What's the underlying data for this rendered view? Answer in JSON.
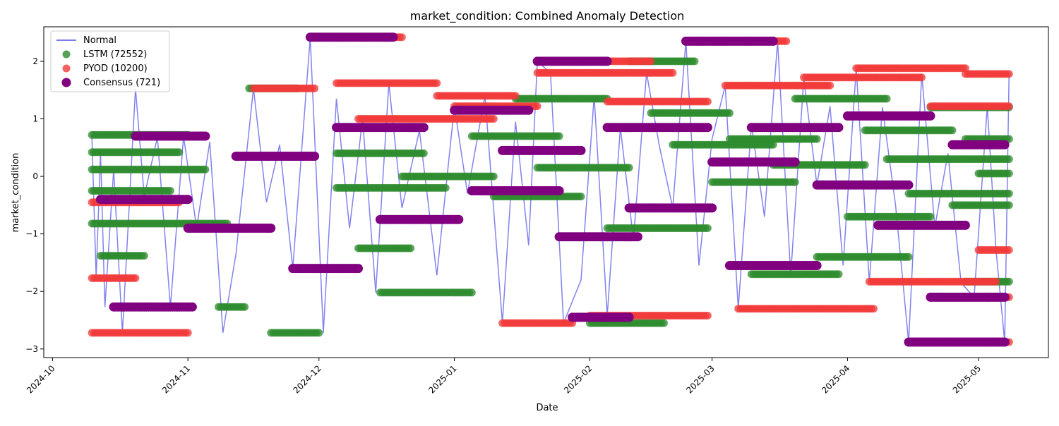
{
  "chart_data": {
    "type": "scatter",
    "title": "market_condition: Combined Anomaly Detection",
    "xlabel": "Date",
    "ylabel": "market_condition",
    "xlim": [
      "2024-09-29",
      "2025-05-17"
    ],
    "ylim": [
      -3.15,
      2.6
    ],
    "x_ticks": [
      "2024-10-01",
      "2024-11-01",
      "2024-12-01",
      "2025-01-01",
      "2025-02-01",
      "2025-03-01",
      "2025-04-01",
      "2025-05-01"
    ],
    "x_tick_labels": [
      "2024-10",
      "2024-11",
      "2024-12",
      "2025-01",
      "2025-02",
      "2025-03",
      "2025-04",
      "2025-05"
    ],
    "y_ticks": [
      -3,
      -2,
      -1,
      0,
      1,
      2
    ],
    "y_tick_labels": [
      "−3",
      "−2",
      "−1",
      "0",
      "1",
      "2"
    ],
    "grid": false,
    "legend_position": "top-left",
    "legend": [
      {
        "label": "Normal",
        "kind": "line",
        "color": "#7b7bed"
      },
      {
        "label": "LSTM (72552)",
        "kind": "marker",
        "color": "#2e8b2e"
      },
      {
        "label": "PYOD (10200)",
        "kind": "marker",
        "color": "#f23a3a"
      },
      {
        "label": "Consensus (721)",
        "kind": "marker",
        "color": "#800080"
      }
    ],
    "series": [
      {
        "name": "Normal",
        "kind": "line",
        "color": "#7b7bed",
        "points": [
          [
            "2024-10-10",
            0.72
          ],
          [
            "2024-10-11",
            -1.77
          ],
          [
            "2024-10-12",
            0.42
          ],
          [
            "2024-10-13",
            -2.27
          ],
          [
            "2024-10-15",
            0.12
          ],
          [
            "2024-10-17",
            -2.72
          ],
          [
            "2024-10-20",
            1.53
          ],
          [
            "2024-10-22",
            -0.35
          ],
          [
            "2024-10-25",
            0.68
          ],
          [
            "2024-10-28",
            -2.27
          ],
          [
            "2024-10-31",
            0.7
          ],
          [
            "2024-11-03",
            -0.9
          ],
          [
            "2024-11-06",
            0.6
          ],
          [
            "2024-11-09",
            -2.72
          ],
          [
            "2024-11-12",
            -1.35
          ],
          [
            "2024-11-16",
            1.53
          ],
          [
            "2024-11-19",
            -0.45
          ],
          [
            "2024-11-22",
            0.55
          ],
          [
            "2024-11-25",
            -1.6
          ],
          [
            "2024-11-29",
            2.42
          ],
          [
            "2024-12-02",
            -2.72
          ],
          [
            "2024-12-05",
            1.35
          ],
          [
            "2024-12-08",
            -0.9
          ],
          [
            "2024-12-11",
            1.0
          ],
          [
            "2024-12-14",
            -2.02
          ],
          [
            "2024-12-17",
            1.62
          ],
          [
            "2024-12-20",
            -0.55
          ],
          [
            "2024-12-24",
            0.8
          ],
          [
            "2024-12-28",
            -1.72
          ],
          [
            "2025-01-01",
            1.22
          ],
          [
            "2025-01-04",
            -0.3
          ],
          [
            "2025-01-08",
            1.4
          ],
          [
            "2025-01-12",
            -2.55
          ],
          [
            "2025-01-15",
            0.95
          ],
          [
            "2025-01-18",
            -1.2
          ],
          [
            "2025-01-20",
            2.0
          ],
          [
            "2025-01-23",
            1.8
          ],
          [
            "2025-01-26",
            -2.55
          ],
          [
            "2025-01-30",
            -1.8
          ],
          [
            "2025-02-02",
            1.4
          ],
          [
            "2025-02-05",
            -2.42
          ],
          [
            "2025-02-08",
            0.85
          ],
          [
            "2025-02-11",
            -1.1
          ],
          [
            "2025-02-14",
            1.8
          ],
          [
            "2025-02-17",
            0.5
          ],
          [
            "2025-02-20",
            -0.55
          ],
          [
            "2025-02-23",
            2.35
          ],
          [
            "2025-02-26",
            -1.55
          ],
          [
            "2025-03-01",
            0.65
          ],
          [
            "2025-03-04",
            1.58
          ],
          [
            "2025-03-07",
            -2.3
          ],
          [
            "2025-03-10",
            0.9
          ],
          [
            "2025-03-13",
            -0.7
          ],
          [
            "2025-03-16",
            2.35
          ],
          [
            "2025-03-19",
            -1.72
          ],
          [
            "2025-03-22",
            1.7
          ],
          [
            "2025-03-25",
            -0.15
          ],
          [
            "2025-03-28",
            1.22
          ],
          [
            "2025-03-31",
            -1.55
          ],
          [
            "2025-04-03",
            1.88
          ],
          [
            "2025-04-06",
            -1.83
          ],
          [
            "2025-04-09",
            1.2
          ],
          [
            "2025-04-12",
            -0.5
          ],
          [
            "2025-04-15",
            -2.88
          ],
          [
            "2025-04-18",
            1.78
          ],
          [
            "2025-04-21",
            -0.88
          ],
          [
            "2025-04-24",
            0.4
          ],
          [
            "2025-04-27",
            -1.85
          ],
          [
            "2025-04-30",
            -2.1
          ],
          [
            "2025-05-03",
            1.22
          ],
          [
            "2025-05-05",
            -1.28
          ],
          [
            "2025-05-07",
            -2.88
          ],
          [
            "2025-05-08",
            1.78
          ]
        ]
      },
      {
        "name": "LSTM (72552)",
        "kind": "scatter",
        "color": "#2e8b2e",
        "runs": [
          [
            "2024-10-10",
            "2024-11-01",
            0.72
          ],
          [
            "2024-10-10",
            "2024-10-30",
            0.42
          ],
          [
            "2024-10-10",
            "2024-11-05",
            0.12
          ],
          [
            "2024-10-10",
            "2024-10-28",
            -0.25
          ],
          [
            "2024-10-10",
            "2024-11-10",
            -0.82
          ],
          [
            "2024-10-12",
            "2024-10-22",
            -1.38
          ],
          [
            "2024-11-08",
            "2024-11-14",
            -2.27
          ],
          [
            "2024-11-15",
            "2024-11-26",
            1.53
          ],
          [
            "2024-11-20",
            "2024-12-01",
            -2.72
          ],
          [
            "2024-12-05",
            "2024-12-25",
            0.4
          ],
          [
            "2024-12-05",
            "2024-12-30",
            -0.2
          ],
          [
            "2024-12-10",
            "2024-12-22",
            -1.25
          ],
          [
            "2024-12-15",
            "2025-01-05",
            -2.02
          ],
          [
            "2024-12-20",
            "2025-01-10",
            0.0
          ],
          [
            "2025-01-05",
            "2025-01-25",
            0.7
          ],
          [
            "2025-01-10",
            "2025-01-30",
            -0.35
          ],
          [
            "2025-01-15",
            "2025-02-05",
            1.35
          ],
          [
            "2025-01-20",
            "2025-02-10",
            0.15
          ],
          [
            "2025-02-01",
            "2025-02-18",
            -2.55
          ],
          [
            "2025-02-05",
            "2025-02-28",
            -0.9
          ],
          [
            "2025-02-10",
            "2025-02-25",
            2.0
          ],
          [
            "2025-02-15",
            "2025-03-05",
            1.1
          ],
          [
            "2025-02-20",
            "2025-03-15",
            0.55
          ],
          [
            "2025-03-01",
            "2025-03-20",
            -0.1
          ],
          [
            "2025-03-05",
            "2025-03-25",
            0.65
          ],
          [
            "2025-03-10",
            "2025-03-30",
            -1.7
          ],
          [
            "2025-03-15",
            "2025-04-05",
            0.2
          ],
          [
            "2025-03-20",
            "2025-04-10",
            1.35
          ],
          [
            "2025-03-25",
            "2025-04-15",
            -1.4
          ],
          [
            "2025-04-01",
            "2025-04-20",
            -0.7
          ],
          [
            "2025-04-05",
            "2025-04-25",
            0.8
          ],
          [
            "2025-04-10",
            "2025-05-08",
            0.3
          ],
          [
            "2025-04-15",
            "2025-05-08",
            -0.3
          ],
          [
            "2025-04-20",
            "2025-05-08",
            1.2
          ],
          [
            "2025-04-25",
            "2025-05-08",
            -0.5
          ],
          [
            "2025-04-28",
            "2025-05-08",
            0.65
          ],
          [
            "2025-04-28",
            "2025-05-08",
            -1.83
          ],
          [
            "2025-05-01",
            "2025-05-08",
            0.05
          ]
        ]
      },
      {
        "name": "PYOD (10200)",
        "kind": "scatter",
        "color": "#f23a3a",
        "runs": [
          [
            "2024-10-10",
            "2024-10-20",
            -1.77
          ],
          [
            "2024-10-10",
            "2024-11-01",
            -2.72
          ],
          [
            "2024-10-10",
            "2024-10-30",
            -0.45
          ],
          [
            "2024-11-16",
            "2024-11-30",
            1.53
          ],
          [
            "2024-11-29",
            "2024-12-20",
            2.42
          ],
          [
            "2024-12-05",
            "2024-12-28",
            1.62
          ],
          [
            "2024-12-10",
            "2025-01-10",
            1.0
          ],
          [
            "2024-12-28",
            "2025-01-15",
            1.4
          ],
          [
            "2025-01-01",
            "2025-01-20",
            1.22
          ],
          [
            "2025-01-12",
            "2025-01-28",
            -2.55
          ],
          [
            "2025-01-20",
            "2025-02-20",
            1.8
          ],
          [
            "2025-01-25",
            "2025-02-15",
            2.0
          ],
          [
            "2025-02-01",
            "2025-02-28",
            -2.42
          ],
          [
            "2025-02-05",
            "2025-02-28",
            1.3
          ],
          [
            "2025-02-23",
            "2025-03-18",
            2.35
          ],
          [
            "2025-03-04",
            "2025-03-28",
            1.58
          ],
          [
            "2025-03-07",
            "2025-04-07",
            -2.3
          ],
          [
            "2025-03-22",
            "2025-04-18",
            1.72
          ],
          [
            "2025-04-03",
            "2025-04-28",
            1.88
          ],
          [
            "2025-04-06",
            "2025-05-05",
            -1.83
          ],
          [
            "2025-04-15",
            "2025-05-08",
            -2.88
          ],
          [
            "2025-04-20",
            "2025-05-08",
            1.22
          ],
          [
            "2025-04-25",
            "2025-05-08",
            -2.1
          ],
          [
            "2025-05-01",
            "2025-05-08",
            -1.28
          ],
          [
            "2025-04-28",
            "2025-05-08",
            1.78
          ]
        ]
      },
      {
        "name": "Consensus (721)",
        "kind": "scatter",
        "color": "#800080",
        "runs": [
          [
            "2024-10-12",
            "2024-11-01",
            -0.4
          ],
          [
            "2024-10-15",
            "2024-11-02",
            -2.27
          ],
          [
            "2024-10-20",
            "2024-11-05",
            0.7
          ],
          [
            "2024-11-01",
            "2024-11-20",
            -0.9
          ],
          [
            "2024-11-12",
            "2024-11-30",
            0.35
          ],
          [
            "2024-11-25",
            "2024-12-10",
            -1.6
          ],
          [
            "2024-11-29",
            "2024-12-18",
            2.42
          ],
          [
            "2024-12-05",
            "2024-12-25",
            0.85
          ],
          [
            "2024-12-15",
            "2025-01-02",
            -0.75
          ],
          [
            "2025-01-01",
            "2025-01-18",
            1.15
          ],
          [
            "2025-01-05",
            "2025-01-25",
            -0.25
          ],
          [
            "2025-01-12",
            "2025-01-30",
            0.45
          ],
          [
            "2025-01-20",
            "2025-02-05",
            2.0
          ],
          [
            "2025-01-25",
            "2025-02-12",
            -1.05
          ],
          [
            "2025-01-28",
            "2025-02-10",
            -2.45
          ],
          [
            "2025-02-05",
            "2025-02-28",
            0.85
          ],
          [
            "2025-02-10",
            "2025-03-01",
            -0.55
          ],
          [
            "2025-02-23",
            "2025-03-15",
            2.35
          ],
          [
            "2025-03-01",
            "2025-03-20",
            0.25
          ],
          [
            "2025-03-05",
            "2025-03-25",
            -1.55
          ],
          [
            "2025-03-10",
            "2025-03-30",
            0.85
          ],
          [
            "2025-03-25",
            "2025-04-15",
            -0.15
          ],
          [
            "2025-04-01",
            "2025-04-20",
            1.05
          ],
          [
            "2025-04-08",
            "2025-04-28",
            -0.85
          ],
          [
            "2025-04-15",
            "2025-05-07",
            -2.88
          ],
          [
            "2025-04-20",
            "2025-05-07",
            -2.1
          ],
          [
            "2025-04-25",
            "2025-05-07",
            0.55
          ]
        ]
      }
    ]
  }
}
